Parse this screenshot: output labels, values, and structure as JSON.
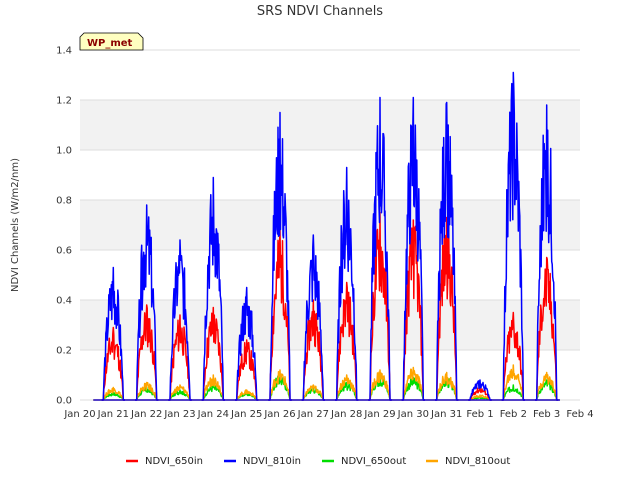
{
  "chart_data": {
    "type": "line",
    "title": "SRS NDVI Channels",
    "ylabel": "NDVI Channels (W/m2/nm)",
    "xlabel": "",
    "badge": "WP_met",
    "ylim": [
      0,
      1.4
    ],
    "yticks": [
      "0.0",
      "0.2",
      "0.4",
      "0.6",
      "0.8",
      "1.0",
      "1.2",
      "1.4"
    ],
    "xlim": [
      0,
      15
    ],
    "xtick_labels": [
      "Jan 20",
      "Jan 21",
      "Jan 22",
      "Jan 23",
      "Jan 24",
      "Jan 25",
      "Jan 26",
      "Jan 27",
      "Jan 28",
      "Jan 29",
      "Jan 30",
      "Jan 31",
      "Feb 1",
      "Feb 2",
      "Feb 3",
      "Feb 4"
    ],
    "grid": "horizontal bands",
    "legend_position": "bottom",
    "day_positions": [
      1,
      2,
      3,
      4,
      5,
      6,
      7,
      8,
      9,
      10,
      11,
      12,
      13,
      14
    ],
    "series": [
      {
        "name": "NDVI_650in",
        "color": "#ff0000",
        "peaks": [
          0.29,
          0.38,
          0.34,
          0.37,
          0.24,
          0.68,
          0.4,
          0.47,
          0.75,
          0.72,
          0.73,
          0.05,
          0.35,
          0.57
        ]
      },
      {
        "name": "NDVI_810in",
        "color": "#0000ff",
        "peaks": [
          0.53,
          0.78,
          0.64,
          0.89,
          0.45,
          1.15,
          0.66,
          0.93,
          1.21,
          1.21,
          1.19,
          0.08,
          1.31,
          1.18
        ]
      },
      {
        "name": "NDVI_650out",
        "color": "#00dd00",
        "peaks": [
          0.03,
          0.05,
          0.04,
          0.06,
          0.03,
          0.1,
          0.05,
          0.07,
          0.1,
          0.09,
          0.09,
          0.01,
          0.06,
          0.08
        ]
      },
      {
        "name": "NDVI_810out",
        "color": "#ffa500",
        "peaks": [
          0.05,
          0.07,
          0.06,
          0.1,
          0.04,
          0.12,
          0.06,
          0.1,
          0.12,
          0.13,
          0.11,
          0.02,
          0.14,
          0.11
        ]
      }
    ]
  }
}
